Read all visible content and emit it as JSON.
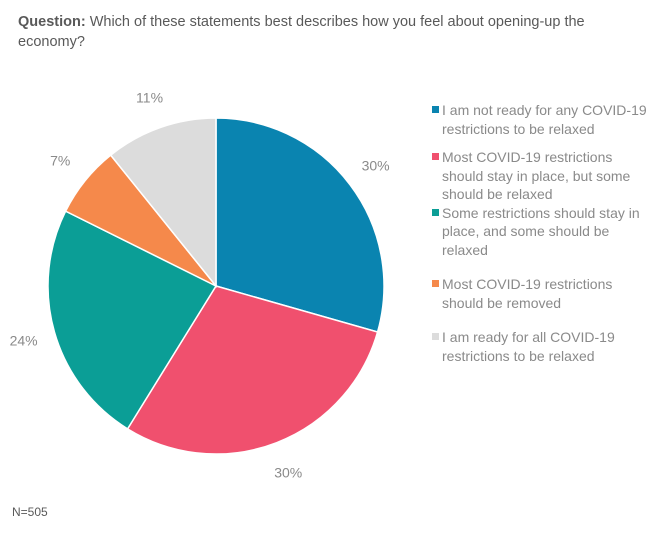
{
  "question": {
    "prefix": "Question:",
    "text": "Which of these statements best describes how you feel about opening-up the economy?"
  },
  "chart_data": {
    "type": "pie",
    "categories": [
      "I am not ready for any COVID-19 restrictions to be relaxed",
      "Most COVID-19 restrictions should stay in place, but some should be relaxed",
      "Some restrictions should stay in place, and some should be relaxed",
      "Most COVID-19 restrictions should be removed",
      "I am ready for all COVID-19 restrictions to be relaxed"
    ],
    "values": [
      30,
      30,
      24,
      7,
      11
    ],
    "value_labels": [
      "30%",
      "30%",
      "24%",
      "7%",
      "11%"
    ],
    "colors": [
      "#0a84b0",
      "#f0506e",
      "#0b9e96",
      "#f5894b",
      "#dcdcdc"
    ],
    "legend_position": "right"
  },
  "footnote": "N=505"
}
